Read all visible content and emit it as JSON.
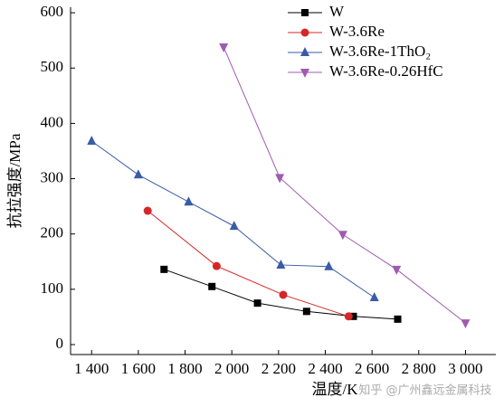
{
  "chart_data": {
    "type": "line",
    "xlabel": "温度/K",
    "ylabel": "抗拉强度/MPa",
    "xlim": [
      1310,
      3130
    ],
    "ylim": [
      -18,
      610
    ],
    "xticks": [
      {
        "value": 1400,
        "label": "1 400"
      },
      {
        "value": 1600,
        "label": "1 600"
      },
      {
        "value": 1800,
        "label": "1 800"
      },
      {
        "value": 2000,
        "label": "2 000"
      },
      {
        "value": 2200,
        "label": "2 200"
      },
      {
        "value": 2400,
        "label": "2 400"
      },
      {
        "value": 2600,
        "label": "2 600"
      },
      {
        "value": 2800,
        "label": "2 800"
      },
      {
        "value": 3000,
        "label": "3 000"
      }
    ],
    "yticks": [
      0,
      100,
      200,
      300,
      400,
      500,
      600
    ],
    "legend": "upper right",
    "watermark": "知乎 @广州鑫远金属科技",
    "series": [
      {
        "name": "W",
        "color": "#000000",
        "marker": "square",
        "x": [
          1710,
          1915,
          2110,
          2320,
          2520,
          2710
        ],
        "values": [
          136,
          105,
          75,
          60,
          51,
          46
        ]
      },
      {
        "name": "W-3.6Re",
        "color": "#d62728",
        "marker": "circle",
        "x": [
          1640,
          1935,
          2220,
          2500
        ],
        "values": [
          242,
          142,
          90,
          51
        ]
      },
      {
        "name": "W-3.6Re-1ThO₂",
        "color": "#3a5ba8",
        "marker": "triangle-up",
        "x": [
          1400,
          1600,
          1815,
          2010,
          2210,
          2415,
          2610
        ],
        "values": [
          368,
          307,
          258,
          214,
          144,
          141,
          85
        ]
      },
      {
        "name": "W-3.6Re-0.26HfC",
        "color": "#a05bb0",
        "marker": "triangle-down",
        "x": [
          1965,
          2205,
          2475,
          2705,
          3000
        ],
        "values": [
          538,
          302,
          199,
          136,
          39
        ]
      }
    ]
  }
}
